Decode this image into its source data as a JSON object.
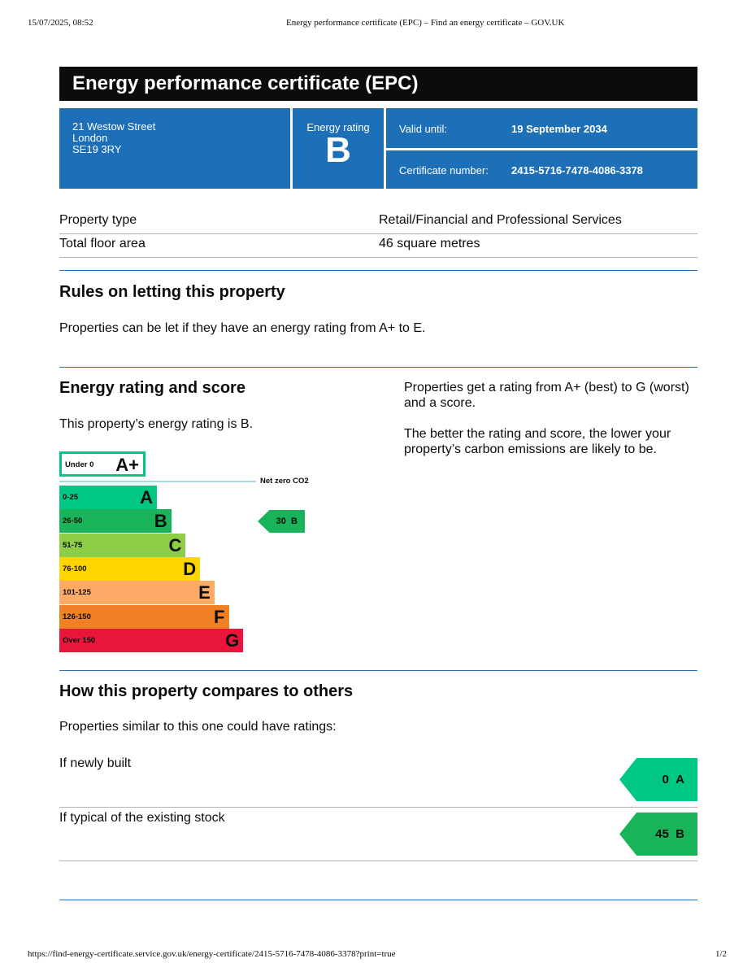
{
  "browser": {
    "datetime": "15/07/2025, 08:52",
    "page_title": "Energy performance certificate (EPC) – Find an energy certificate – GOV.UK",
    "url": "https://find-energy-certificate.service.gov.uk/energy-certificate/2415-5716-7478-4086-3378?print=true",
    "page_number": "1/2"
  },
  "title": "Energy performance certificate (EPC)",
  "address": [
    "21 Westow Street",
    "London",
    "SE19 3RY"
  ],
  "rating_label": "Energy rating",
  "rating": "B",
  "valid_label": "Valid until:",
  "valid_value": "19 September 2034",
  "cert_label": "Certificate number:",
  "cert_value": "2415-5716-7478-4086-3378",
  "property": [
    {
      "label": "Property type",
      "value": "Retail/Financial and Professional Services"
    },
    {
      "label": "Total floor area",
      "value": "46 square metres"
    }
  ],
  "rules": {
    "heading": "Rules on letting this property",
    "text": "Properties can be let if they have an energy rating from A+ to E."
  },
  "score": {
    "heading": "Energy rating and score",
    "text": "This property’s energy rating is B.",
    "right1": "Properties get a rating from A+ (best) to G (worst) and a score.",
    "right2": "The better the rating and score, the lower your property’s carbon emissions are likely to be.",
    "aplus": {
      "range": "Under 0",
      "letter": "A+",
      "color": "#00c781"
    },
    "net_zero": "Net zero CO2",
    "bands": [
      {
        "range": "0-25",
        "letter": "A",
        "color": "#00c781"
      },
      {
        "range": "26-50",
        "letter": "B",
        "color": "#19b459"
      },
      {
        "range": "51-75",
        "letter": "C",
        "color": "#8dce46"
      },
      {
        "range": "76-100",
        "letter": "D",
        "color": "#ffd500"
      },
      {
        "range": "101-125",
        "letter": "E",
        "color": "#fcaa65"
      },
      {
        "range": "126-150",
        "letter": "F",
        "color": "#ef8023"
      },
      {
        "range": "Over 150",
        "letter": "G",
        "color": "#e9153b"
      }
    ],
    "current": {
      "score": "30",
      "letter": "B",
      "color": "#19b459"
    }
  },
  "compare": {
    "heading": "How this property compares to others",
    "text": "Properties similar to this one could have ratings:",
    "items": [
      {
        "label": "If newly built",
        "score": "0",
        "letter": "A",
        "color": "#00c781"
      },
      {
        "label": "If typical of the existing stock",
        "score": "45",
        "letter": "B",
        "color": "#19b459"
      }
    ]
  }
}
